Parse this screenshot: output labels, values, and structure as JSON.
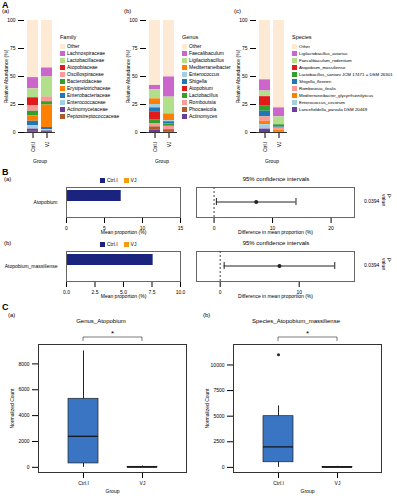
{
  "panels": [
    "A",
    "B",
    "C"
  ],
  "chart_data": [
    {
      "type": "bar",
      "panel": "A",
      "subpanel": "(a)",
      "stacked": true,
      "legend": "right",
      "legend_title": "Family",
      "x_label": "Group",
      "y_label": "Relative Abundance (%)",
      "categories": [
        "Ctrl.I",
        "VJ"
      ],
      "ylim": [
        0,
        100
      ],
      "yticks": [
        0,
        25,
        50,
        75,
        100
      ],
      "grid": false,
      "series": [
        {
          "name": "Other",
          "color": "#fde9d4",
          "values": [
            51,
            42.4
          ]
        },
        {
          "name": "Lachnospiraceae",
          "color": "#cc66cc",
          "values": [
            10,
            8
          ]
        },
        {
          "name": "Lactobacillaceae",
          "color": "#b2df8a",
          "values": [
            8,
            18
          ]
        },
        {
          "name": "Atopobiaceae",
          "color": "#e31a1c",
          "values": [
            7,
            0.1
          ]
        },
        {
          "name": "Oscillospiraceae",
          "color": "#fb9a99",
          "values": [
            5,
            4
          ]
        },
        {
          "name": "Bacteroidaceae",
          "color": "#33a02c",
          "values": [
            4,
            3
          ]
        },
        {
          "name": "Erysipelotrichaceae",
          "color": "#ff7f00",
          "values": [
            5,
            20
          ]
        },
        {
          "name": "Enterobacteriaceae",
          "color": "#1f78b4",
          "values": [
            4,
            2
          ]
        },
        {
          "name": "Enterococcaceae",
          "color": "#a6cee3",
          "values": [
            3,
            1
          ]
        },
        {
          "name": "Actinomycetaceae",
          "color": "#6a3d9a",
          "values": [
            2,
            0.5
          ]
        },
        {
          "name": "Peptostreptococcaceae",
          "color": "#b15928",
          "values": [
            1,
            1
          ]
        }
      ]
    },
    {
      "type": "bar",
      "panel": "A",
      "subpanel": "(b)",
      "stacked": true,
      "legend": "right",
      "legend_title": "Genus",
      "x_label": "Group",
      "y_label": "Relative Abundance (%)",
      "categories": [
        "Ctrl.I",
        "VJ"
      ],
      "ylim": [
        0,
        100
      ],
      "yticks": [
        0,
        25,
        50,
        75,
        100
      ],
      "grid": false,
      "series": [
        {
          "name": "Other",
          "color": "#fde9d4",
          "values": [
            58,
            50.4
          ]
        },
        {
          "name": "Faecalibaculum",
          "color": "#cc66cc",
          "values": [
            4,
            18
          ]
        },
        {
          "name": "Ligilactobacillus",
          "color": "#b2df8a",
          "values": [
            8,
            15
          ]
        },
        {
          "name": "Mediterraneibacter",
          "color": "#ff7f00",
          "values": [
            5,
            6
          ]
        },
        {
          "name": "Enterococcus",
          "color": "#a6cee3",
          "values": [
            3,
            1
          ]
        },
        {
          "name": "Shigella",
          "color": "#1f78b4",
          "values": [
            4,
            2
          ]
        },
        {
          "name": "Atopobium",
          "color": "#e31a1c",
          "values": [
            7,
            0.1
          ]
        },
        {
          "name": "Lactobacillus",
          "color": "#33a02c",
          "values": [
            3,
            2
          ]
        },
        {
          "name": "Romboutsia",
          "color": "#fb9a99",
          "values": [
            3,
            3
          ]
        },
        {
          "name": "Phocaeicola",
          "color": "#b15928",
          "values": [
            3,
            2
          ]
        },
        {
          "name": "Actinomyces",
          "color": "#6a3d9a",
          "values": [
            2,
            0.5
          ]
        }
      ]
    },
    {
      "type": "bar",
      "panel": "A",
      "subpanel": "(c)",
      "stacked": true,
      "legend": "right",
      "legend_title": "Species",
      "x_label": "Group",
      "y_label": "Relative Abundance (%)",
      "categories": [
        "Ctrl.I",
        "VJ"
      ],
      "ylim": [
        0,
        100
      ],
      "yticks": [
        0,
        25,
        50,
        75,
        100
      ],
      "grid": false,
      "series": [
        {
          "name": "Other",
          "color": "#fde9d4",
          "values": [
            53,
            78
          ]
        },
        {
          "name": "Ligilactobacillus_aviarius",
          "color": "#cc66cc",
          "values": [
            10,
            8
          ]
        },
        {
          "name": "Faecalibaculum_rodentium",
          "color": "#b2df8a",
          "values": [
            5,
            7
          ]
        },
        {
          "name": "Atopobium_massiliense",
          "color": "#e31a1c",
          "values": [
            8,
            0.1
          ]
        },
        {
          "name": "Lactobacillus_sanioni JCM 17471 = DSM 26301",
          "color": "#33a02c",
          "values": [
            5,
            2
          ]
        },
        {
          "name": "Shigella_flexneri",
          "color": "#1f78b4",
          "values": [
            5,
            1
          ]
        },
        {
          "name": "Romboutsia_ilealis",
          "color": "#fb9a99",
          "values": [
            4,
            2
          ]
        },
        {
          "name": "Mediterraneibacter_glycyrrhizinilyticus",
          "color": "#ff7f00",
          "values": [
            3,
            1
          ]
        },
        {
          "name": "Enterococcus_cecorum",
          "color": "#a6cee3",
          "values": [
            4,
            0.5
          ]
        },
        {
          "name": "Lancefieldella_parvula DSM 20469",
          "color": "#6a3d9a",
          "values": [
            3,
            0.4
          ]
        }
      ]
    },
    {
      "type": "bar",
      "panel": "B",
      "subpanel": "(a)",
      "orientation": "horizontal",
      "title": "95% confidence intervals",
      "categories": [
        "Atopobium"
      ],
      "series": [
        {
          "name": "Ctrl.I",
          "color": "#1a237e",
          "values": [
            7.2
          ]
        },
        {
          "name": "VJ",
          "color": "#f39c12",
          "values": [
            0.05
          ]
        }
      ],
      "x_label": "Mean proportion (%)",
      "xlim": [
        0,
        15
      ],
      "xticks": [
        0,
        5,
        10,
        15
      ],
      "difference": {
        "x_label": "Difference in mean proportion (%)",
        "values": [
          7.2
        ],
        "ci_low": [
          0.4
        ],
        "ci_high": [
          14
        ],
        "xlim": [
          -3,
          24
        ],
        "xticks": [
          0,
          10,
          20
        ],
        "reference_line": 0,
        "color": "#222222"
      },
      "p_value_label": "p-value",
      "p_value": [
        0.0394
      ]
    },
    {
      "type": "bar",
      "panel": "B",
      "subpanel": "(b)",
      "orientation": "horizontal",
      "title": "95% confidence intervals",
      "categories": [
        "Atopobium_massiliense"
      ],
      "series": [
        {
          "name": "Ctrl.I",
          "color": "#1a237e",
          "values": [
            7.6
          ]
        },
        {
          "name": "VJ",
          "color": "#f39c12",
          "values": [
            0.05
          ]
        }
      ],
      "x_label": "Mean proportion (%)",
      "xlim": [
        0,
        10
      ],
      "xticks": [
        {
          "value": 0,
          "label": "0.0"
        },
        {
          "value": 2.5,
          "label": "2.5"
        },
        {
          "value": 5,
          "label": "5.0"
        },
        {
          "value": 7.5,
          "label": "7.5"
        },
        {
          "value": 10,
          "label": "10.0"
        }
      ],
      "difference": {
        "x_label": "Difference in mean proportion (%)",
        "values": [
          7.5
        ],
        "ci_low": [
          0.5
        ],
        "ci_high": [
          14.5
        ],
        "xlim": [
          -3,
          17
        ],
        "xticks": [
          0,
          10
        ],
        "reference_line": 0,
        "color": "#222222"
      },
      "p_value_label": "p-value",
      "p_value": [
        0.0394
      ]
    },
    {
      "type": "box",
      "panel": "C",
      "subpanel": "(a)",
      "title": "Genus_Atopobium",
      "significance": "*",
      "x_label": "Group",
      "y_label": "Normalized Count",
      "categories": [
        "Ctrl.I",
        "VJ"
      ],
      "colors": [
        "#3a75c4",
        "#3a75c4"
      ],
      "min": [
        0,
        0
      ],
      "q1": [
        300,
        0
      ],
      "median": [
        2400,
        10
      ],
      "q3": [
        5300,
        40
      ],
      "max": [
        9000,
        100
      ],
      "outliers": [
        [],
        []
      ],
      "ylim": [
        -400,
        9500
      ],
      "yticks": [
        0,
        2000,
        4000,
        6000,
        8000
      ]
    },
    {
      "type": "box",
      "panel": "C",
      "subpanel": "(b)",
      "title": "Species_Atopobium_massiliense",
      "significance": "*",
      "x_label": "Group",
      "y_label": "Normalized Count",
      "categories": [
        "Ctrl.I",
        "VJ"
      ],
      "colors": [
        "#3a75c4",
        "#3a75c4"
      ],
      "min": [
        0,
        0
      ],
      "q1": [
        500,
        0
      ],
      "median": [
        2000,
        10
      ],
      "q3": [
        5000,
        40
      ],
      "max": [
        6000,
        100
      ],
      "outliers": [
        [
          11000
        ],
        []
      ],
      "ylim": [
        -500,
        12000
      ],
      "yticks": [
        0,
        2500,
        5000,
        7500,
        10000
      ]
    }
  ]
}
